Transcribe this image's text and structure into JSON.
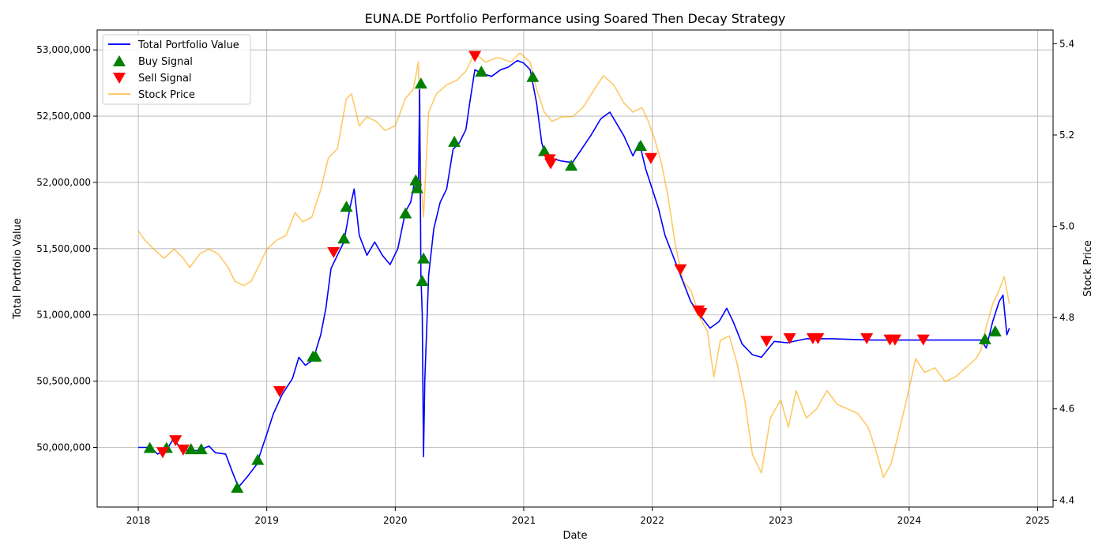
{
  "chart_data": {
    "type": "line",
    "title": "EUNA.DE Portfolio Performance using Soared Then Decay Strategy",
    "xlabel": "Date",
    "ylabel": "Total Portfolio Value",
    "y2label": "Stock Price",
    "xlim": [
      2017.68,
      2025.12
    ],
    "ylim": [
      49550000,
      53150000
    ],
    "y2lim": [
      4.385,
      5.43
    ],
    "grid": true,
    "legend_position": "top-left",
    "x_ticks": [
      2018,
      2019,
      2020,
      2021,
      2022,
      2023,
      2024,
      2025
    ],
    "y_ticks": [
      50000000,
      50500000,
      51000000,
      51500000,
      52000000,
      52500000,
      53000000
    ],
    "y2_ticks": [
      4.4,
      4.6,
      4.8,
      5.0,
      5.2,
      5.4
    ],
    "series": [
      {
        "name": "Total Portfolio Value",
        "color": "#0000ff",
        "axis": "left",
        "points": [
          [
            2018.0,
            50000000
          ],
          [
            2018.1,
            50000000
          ],
          [
            2018.15,
            49950000
          ],
          [
            2018.22,
            49980000
          ],
          [
            2018.27,
            50060000
          ],
          [
            2018.33,
            50000000
          ],
          [
            2018.4,
            49970000
          ],
          [
            2018.48,
            49980000
          ],
          [
            2018.55,
            50010000
          ],
          [
            2018.6,
            49960000
          ],
          [
            2018.68,
            49950000
          ],
          [
            2018.73,
            49820000
          ],
          [
            2018.78,
            49700000
          ],
          [
            2018.85,
            49780000
          ],
          [
            2018.92,
            49870000
          ],
          [
            2019.0,
            50100000
          ],
          [
            2019.05,
            50250000
          ],
          [
            2019.12,
            50400000
          ],
          [
            2019.2,
            50520000
          ],
          [
            2019.25,
            50680000
          ],
          [
            2019.3,
            50620000
          ],
          [
            2019.36,
            50660000
          ],
          [
            2019.42,
            50850000
          ],
          [
            2019.46,
            51050000
          ],
          [
            2019.5,
            51350000
          ],
          [
            2019.55,
            51450000
          ],
          [
            2019.6,
            51550000
          ],
          [
            2019.65,
            51820000
          ],
          [
            2019.68,
            51950000
          ],
          [
            2019.72,
            51600000
          ],
          [
            2019.78,
            51450000
          ],
          [
            2019.84,
            51550000
          ],
          [
            2019.9,
            51450000
          ],
          [
            2019.96,
            51380000
          ],
          [
            2020.02,
            51500000
          ],
          [
            2020.08,
            51780000
          ],
          [
            2020.12,
            51850000
          ],
          [
            2020.15,
            52000000
          ],
          [
            2020.18,
            51950000
          ],
          [
            2020.19,
            52700000
          ],
          [
            2020.2,
            51300000
          ],
          [
            2020.21,
            51000000
          ],
          [
            2020.22,
            49930000
          ],
          [
            2020.23,
            50500000
          ],
          [
            2020.26,
            51300000
          ],
          [
            2020.3,
            51650000
          ],
          [
            2020.35,
            51850000
          ],
          [
            2020.4,
            51950000
          ],
          [
            2020.45,
            52250000
          ],
          [
            2020.5,
            52300000
          ],
          [
            2020.55,
            52400000
          ],
          [
            2020.58,
            52600000
          ],
          [
            2020.62,
            52850000
          ],
          [
            2020.68,
            52820000
          ],
          [
            2020.75,
            52800000
          ],
          [
            2020.82,
            52850000
          ],
          [
            2020.88,
            52870000
          ],
          [
            2020.95,
            52920000
          ],
          [
            2021.0,
            52900000
          ],
          [
            2021.05,
            52850000
          ],
          [
            2021.1,
            52600000
          ],
          [
            2021.14,
            52300000
          ],
          [
            2021.17,
            52200000
          ],
          [
            2021.22,
            52180000
          ],
          [
            2021.3,
            52160000
          ],
          [
            2021.38,
            52150000
          ],
          [
            2021.45,
            52250000
          ],
          [
            2021.52,
            52350000
          ],
          [
            2021.6,
            52480000
          ],
          [
            2021.67,
            52530000
          ],
          [
            2021.72,
            52450000
          ],
          [
            2021.78,
            52350000
          ],
          [
            2021.85,
            52200000
          ],
          [
            2021.9,
            52300000
          ],
          [
            2021.95,
            52100000
          ],
          [
            2022.0,
            51950000
          ],
          [
            2022.05,
            51800000
          ],
          [
            2022.1,
            51600000
          ],
          [
            2022.16,
            51450000
          ],
          [
            2022.22,
            51300000
          ],
          [
            2022.3,
            51100000
          ],
          [
            2022.37,
            51000000
          ],
          [
            2022.45,
            50900000
          ],
          [
            2022.52,
            50950000
          ],
          [
            2022.58,
            51050000
          ],
          [
            2022.63,
            50950000
          ],
          [
            2022.7,
            50780000
          ],
          [
            2022.78,
            50700000
          ],
          [
            2022.85,
            50680000
          ],
          [
            2022.95,
            50800000
          ],
          [
            2023.05,
            50790000
          ],
          [
            2023.2,
            50820000
          ],
          [
            2023.4,
            50820000
          ],
          [
            2023.7,
            50810000
          ],
          [
            2024.0,
            50810000
          ],
          [
            2024.3,
            50810000
          ],
          [
            2024.56,
            50810000
          ],
          [
            2024.6,
            50750000
          ],
          [
            2024.65,
            50950000
          ],
          [
            2024.7,
            51100000
          ],
          [
            2024.73,
            51150000
          ],
          [
            2024.76,
            50850000
          ],
          [
            2024.78,
            50900000
          ]
        ]
      },
      {
        "name": "Stock Price",
        "color": "#ffa500",
        "axis": "right",
        "points": [
          [
            2018.0,
            4.99
          ],
          [
            2018.05,
            4.97
          ],
          [
            2018.12,
            4.95
          ],
          [
            2018.2,
            4.93
          ],
          [
            2018.28,
            4.95
          ],
          [
            2018.35,
            4.93
          ],
          [
            2018.4,
            4.91
          ],
          [
            2018.48,
            4.94
          ],
          [
            2018.55,
            4.95
          ],
          [
            2018.62,
            4.94
          ],
          [
            2018.7,
            4.91
          ],
          [
            2018.75,
            4.88
          ],
          [
            2018.82,
            4.87
          ],
          [
            2018.88,
            4.88
          ],
          [
            2018.95,
            4.92
          ],
          [
            2019.0,
            4.95
          ],
          [
            2019.08,
            4.97
          ],
          [
            2019.15,
            4.98
          ],
          [
            2019.22,
            5.03
          ],
          [
            2019.28,
            5.01
          ],
          [
            2019.35,
            5.02
          ],
          [
            2019.42,
            5.08
          ],
          [
            2019.48,
            5.15
          ],
          [
            2019.55,
            5.17
          ],
          [
            2019.62,
            5.28
          ],
          [
            2019.66,
            5.29
          ],
          [
            2019.72,
            5.22
          ],
          [
            2019.78,
            5.24
          ],
          [
            2019.85,
            5.23
          ],
          [
            2019.92,
            5.21
          ],
          [
            2020.0,
            5.22
          ],
          [
            2020.08,
            5.28
          ],
          [
            2020.14,
            5.3
          ],
          [
            2020.18,
            5.36
          ],
          [
            2020.2,
            5.1
          ],
          [
            2020.22,
            5.02
          ],
          [
            2020.26,
            5.25
          ],
          [
            2020.32,
            5.29
          ],
          [
            2020.4,
            5.31
          ],
          [
            2020.48,
            5.32
          ],
          [
            2020.55,
            5.34
          ],
          [
            2020.62,
            5.38
          ],
          [
            2020.7,
            5.36
          ],
          [
            2020.8,
            5.37
          ],
          [
            2020.9,
            5.36
          ],
          [
            2020.97,
            5.38
          ],
          [
            2021.05,
            5.36
          ],
          [
            2021.1,
            5.3
          ],
          [
            2021.16,
            5.25
          ],
          [
            2021.22,
            5.23
          ],
          [
            2021.3,
            5.24
          ],
          [
            2021.38,
            5.24
          ],
          [
            2021.46,
            5.26
          ],
          [
            2021.55,
            5.3
          ],
          [
            2021.62,
            5.33
          ],
          [
            2021.7,
            5.31
          ],
          [
            2021.78,
            5.27
          ],
          [
            2021.85,
            5.25
          ],
          [
            2021.92,
            5.26
          ],
          [
            2021.97,
            5.23
          ],
          [
            2022.02,
            5.19
          ],
          [
            2022.07,
            5.14
          ],
          [
            2022.12,
            5.07
          ],
          [
            2022.18,
            4.96
          ],
          [
            2022.24,
            4.88
          ],
          [
            2022.3,
            4.86
          ],
          [
            2022.37,
            4.8
          ],
          [
            2022.43,
            4.77
          ],
          [
            2022.48,
            4.67
          ],
          [
            2022.53,
            4.75
          ],
          [
            2022.6,
            4.76
          ],
          [
            2022.66,
            4.7
          ],
          [
            2022.72,
            4.62
          ],
          [
            2022.78,
            4.5
          ],
          [
            2022.85,
            4.46
          ],
          [
            2022.92,
            4.58
          ],
          [
            2023.0,
            4.62
          ],
          [
            2023.06,
            4.56
          ],
          [
            2023.12,
            4.64
          ],
          [
            2023.2,
            4.58
          ],
          [
            2023.28,
            4.6
          ],
          [
            2023.36,
            4.64
          ],
          [
            2023.44,
            4.61
          ],
          [
            2023.52,
            4.6
          ],
          [
            2023.6,
            4.59
          ],
          [
            2023.68,
            4.56
          ],
          [
            2023.74,
            4.51
          ],
          [
            2023.8,
            4.45
          ],
          [
            2023.86,
            4.48
          ],
          [
            2023.92,
            4.55
          ],
          [
            2023.98,
            4.62
          ],
          [
            2024.05,
            4.71
          ],
          [
            2024.12,
            4.68
          ],
          [
            2024.2,
            4.69
          ],
          [
            2024.28,
            4.66
          ],
          [
            2024.36,
            4.67
          ],
          [
            2024.44,
            4.69
          ],
          [
            2024.52,
            4.71
          ],
          [
            2024.56,
            4.73
          ],
          [
            2024.6,
            4.78
          ],
          [
            2024.65,
            4.83
          ],
          [
            2024.7,
            4.86
          ],
          [
            2024.74,
            4.89
          ],
          [
            2024.78,
            4.83
          ]
        ]
      }
    ],
    "buy_signals": {
      "name": "Buy Signal",
      "color": "#008000",
      "points": [
        [
          2018.09,
          50000000
        ],
        [
          2018.22,
          50000000
        ],
        [
          2018.41,
          49990000
        ],
        [
          2018.49,
          49990000
        ],
        [
          2018.77,
          49700000
        ],
        [
          2018.93,
          49910000
        ],
        [
          2019.36,
          50690000
        ],
        [
          2019.38,
          50690000
        ],
        [
          2019.6,
          51580000
        ],
        [
          2019.62,
          51820000
        ],
        [
          2020.08,
          51770000
        ],
        [
          2020.16,
          52020000
        ],
        [
          2020.17,
          51960000
        ],
        [
          2020.2,
          52750000
        ],
        [
          2020.21,
          51260000
        ],
        [
          2020.22,
          51430000
        ],
        [
          2020.46,
          52310000
        ],
        [
          2020.67,
          52840000
        ],
        [
          2021.07,
          52800000
        ],
        [
          2021.16,
          52240000
        ],
        [
          2021.37,
          52130000
        ],
        [
          2021.91,
          52280000
        ],
        [
          2024.59,
          50820000
        ],
        [
          2024.67,
          50880000
        ]
      ]
    },
    "sell_signals": {
      "name": "Sell Signal",
      "color": "#ff0000",
      "points": [
        [
          2018.19,
          49960000
        ],
        [
          2018.29,
          50050000
        ],
        [
          2018.35,
          49980000
        ],
        [
          2019.1,
          50420000
        ],
        [
          2019.52,
          51470000
        ],
        [
          2020.62,
          52950000
        ],
        [
          2021.2,
          52170000
        ],
        [
          2021.21,
          52140000
        ],
        [
          2021.99,
          52180000
        ],
        [
          2022.22,
          51340000
        ],
        [
          2022.36,
          51030000
        ],
        [
          2022.38,
          51010000
        ],
        [
          2022.89,
          50800000
        ],
        [
          2023.07,
          50820000
        ],
        [
          2023.25,
          50820000
        ],
        [
          2023.29,
          50820000
        ],
        [
          2023.67,
          50820000
        ],
        [
          2023.85,
          50810000
        ],
        [
          2023.89,
          50810000
        ],
        [
          2024.11,
          50810000
        ]
      ]
    },
    "legend": [
      "Total Portfolio Value",
      "Buy Signal",
      "Sell Signal",
      "Stock Price"
    ]
  }
}
